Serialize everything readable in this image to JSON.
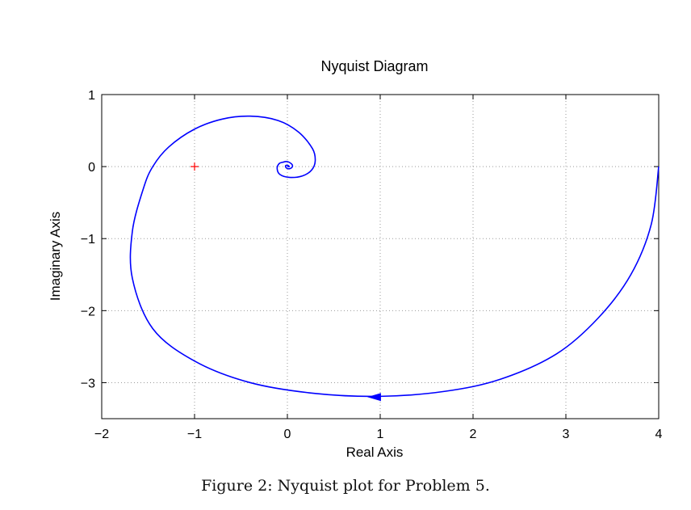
{
  "caption": "Figure 2: Nyquist plot for Problem 5.",
  "chart_data": {
    "type": "line",
    "title": "Nyquist Diagram",
    "xlabel": "Real Axis",
    "ylabel": "Imaginary Axis",
    "xlim": [
      -2,
      4
    ],
    "ylim": [
      -3.5,
      1
    ],
    "x_ticks": [
      -2,
      -1,
      0,
      1,
      2,
      3,
      4
    ],
    "y_ticks": [
      -3,
      -2,
      -1,
      0,
      1
    ],
    "x_tick_labels": [
      "−2",
      "−1",
      "0",
      "1",
      "2",
      "3",
      "4"
    ],
    "y_tick_labels": [
      "−3",
      "−2",
      "−1",
      "0",
      "1"
    ],
    "grid": true,
    "critical_point": {
      "x": -1,
      "y": 0,
      "marker": "+",
      "color": "#ff0000"
    },
    "curve_color": "#0000ff",
    "direction_arrow": {
      "x": 0.93,
      "y": -3.2
    },
    "series": [
      {
        "points": [
          [
            4.0,
            0.0
          ],
          [
            3.92,
            -0.8
          ],
          [
            3.7,
            -1.5
          ],
          [
            3.35,
            -2.1
          ],
          [
            2.9,
            -2.6
          ],
          [
            2.3,
            -2.95
          ],
          [
            1.7,
            -3.12
          ],
          [
            1.0,
            -3.19
          ],
          [
            0.3,
            -3.15
          ],
          [
            -0.4,
            -3.0
          ],
          [
            -1.0,
            -2.7
          ],
          [
            -1.45,
            -2.25
          ],
          [
            -1.67,
            -1.55
          ],
          [
            -1.67,
            -0.9
          ],
          [
            -1.55,
            -0.3
          ],
          [
            -1.45,
            0.0
          ],
          [
            -1.28,
            0.27
          ],
          [
            -1.0,
            0.52
          ],
          [
            -0.7,
            0.66
          ],
          [
            -0.4,
            0.7
          ],
          [
            -0.1,
            0.64
          ],
          [
            0.12,
            0.48
          ],
          [
            0.27,
            0.25
          ],
          [
            0.3,
            0.08
          ],
          [
            0.26,
            -0.05
          ],
          [
            0.16,
            -0.13
          ],
          [
            0.02,
            -0.15
          ],
          [
            -0.08,
            -0.11
          ],
          [
            -0.11,
            -0.03
          ],
          [
            -0.09,
            0.04
          ],
          [
            -0.05,
            0.06
          ],
          [
            0.0,
            0.07
          ],
          [
            0.05,
            0.03
          ],
          [
            0.05,
            -0.01
          ],
          [
            0.02,
            -0.03
          ],
          [
            -0.01,
            -0.02
          ],
          [
            -0.02,
            0.01
          ],
          [
            0.0,
            0.02
          ],
          [
            0.02,
            0.0
          ],
          [
            0.0,
            0.0
          ]
        ]
      }
    ]
  }
}
